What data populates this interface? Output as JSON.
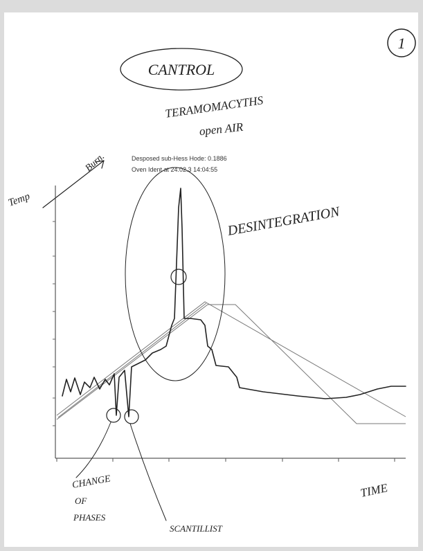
{
  "header": {
    "page_number": "1",
    "title": "CANTROL",
    "subtitle_lines": [
      "TERAMOMACYTHS",
      "open AIR"
    ]
  },
  "printed_info": [
    "Desposed sub-Hess Hode: 0.1886",
    "Oven Ident at 24.02.3 14:04:55"
  ],
  "annotations": {
    "burn": "Burn.",
    "temp": "Temp",
    "desintegration": "DESINTEGRATION",
    "change_of_phases": [
      "CHANGE",
      "OF",
      "PHASES"
    ],
    "time": "TIME",
    "scantillist": "SCANTILLIST"
  }
}
